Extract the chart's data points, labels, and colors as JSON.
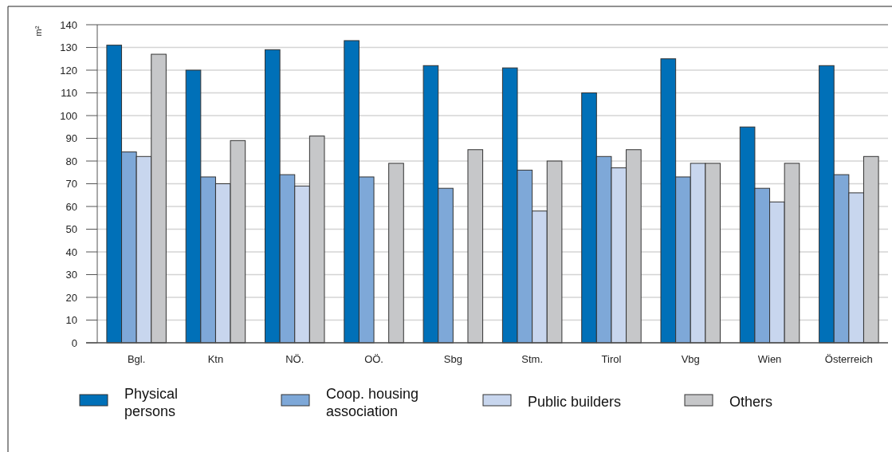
{
  "chart_data": {
    "type": "bar",
    "ylabel": "m²",
    "categories": [
      "Bgl.",
      "Ktn",
      "NÖ.",
      "OÖ.",
      "Sbg",
      "Stm.",
      "Tirol",
      "Vbg",
      "Wien",
      "Österreich"
    ],
    "series": [
      {
        "name": "Physical persons",
        "color": "#0070b8",
        "values": [
          131,
          120,
          129,
          133,
          122,
          121,
          110,
          125,
          95,
          122
        ]
      },
      {
        "name": "Coop. housing association",
        "color": "#7ea8d8",
        "values": [
          84,
          73,
          74,
          73,
          68,
          76,
          82,
          73,
          68,
          74
        ]
      },
      {
        "name": "Public builders",
        "color": "#c8d6ee",
        "values": [
          82,
          70,
          69,
          null,
          null,
          58,
          77,
          79,
          62,
          66
        ]
      },
      {
        "name": "Others",
        "color": "#c6c7c9",
        "values": [
          127,
          89,
          91,
          79,
          85,
          80,
          85,
          79,
          79,
          82
        ]
      }
    ],
    "ylim": [
      0,
      140
    ],
    "yticks": [
      0,
      10,
      20,
      30,
      40,
      50,
      60,
      70,
      80,
      90,
      100,
      110,
      120,
      130,
      140
    ],
    "grid": "y",
    "legend": "bottom"
  }
}
